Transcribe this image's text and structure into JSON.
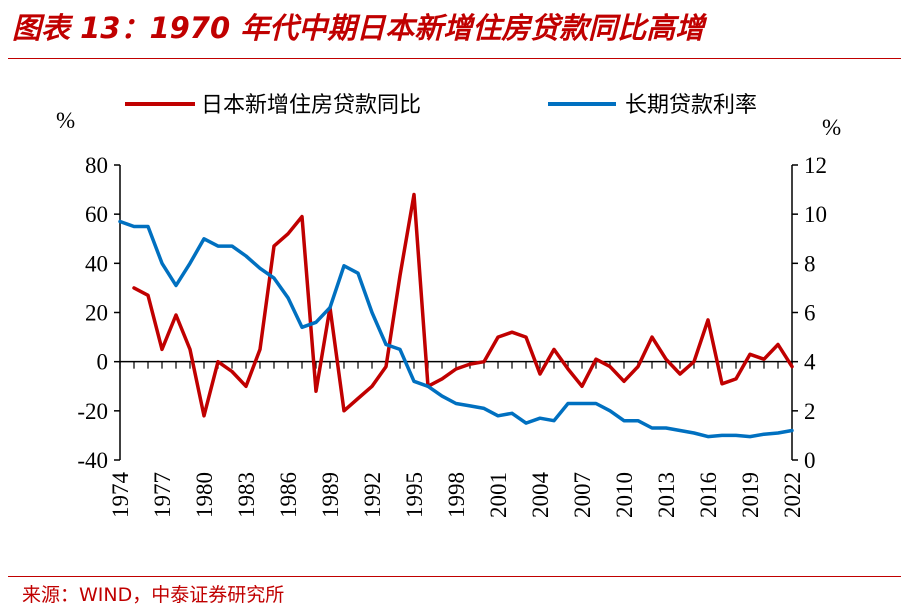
{
  "header": {
    "title": "图表 13：1970 年代中期日本新增住房贷款同比高增"
  },
  "footer": {
    "source": "来源：WIND，中泰证券研究所"
  },
  "colors": {
    "brand_red": "#c00000",
    "series_red": "#c00000",
    "series_blue": "#0070c0"
  },
  "chart_data": {
    "type": "line",
    "left_unit": "%",
    "right_unit": "%",
    "y_left_ticks": [
      "80",
      "60",
      "40",
      "20",
      "0",
      "-20",
      "-40"
    ],
    "y_right_ticks": [
      "12",
      "10",
      "8",
      "6",
      "4",
      "2",
      "0"
    ],
    "ylim_left": [
      -40,
      80
    ],
    "ylim_right": [
      0,
      12
    ],
    "x_tick_labels": [
      "1974",
      "1977",
      "1980",
      "1983",
      "1986",
      "1989",
      "1992",
      "1995",
      "1998",
      "2001",
      "2004",
      "2007",
      "2010",
      "2013",
      "2016",
      "2019",
      "2022"
    ],
    "xlim": [
      1974,
      2022
    ],
    "legend_position": "top",
    "grid": false,
    "series": [
      {
        "name": "日本新增住房贷款同比",
        "axis": "left",
        "color": "#c00000",
        "x": [
          1975,
          1976,
          1977,
          1978,
          1979,
          1980,
          1981,
          1982,
          1983,
          1984,
          1985,
          1986,
          1987,
          1988,
          1989,
          1990,
          1991,
          1992,
          1993,
          1994,
          1995,
          1996,
          1997,
          1998,
          1999,
          2000,
          2001,
          2002,
          2003,
          2004,
          2005,
          2006,
          2007,
          2008,
          2009,
          2010,
          2011,
          2012,
          2013,
          2014,
          2015,
          2016,
          2017,
          2018,
          2019,
          2020,
          2021,
          2022
        ],
        "values": [
          30,
          27,
          5,
          19,
          5,
          -22,
          0,
          -4,
          -10,
          5,
          47,
          52,
          59,
          -12,
          22,
          -20,
          -15,
          -10,
          -2,
          35,
          68,
          -10,
          -7,
          -3,
          -1,
          0,
          10,
          12,
          10,
          -5,
          5,
          -3,
          -10,
          1,
          -2,
          -8,
          -2,
          10,
          1,
          -5,
          0,
          17,
          -9,
          -7,
          3,
          1,
          7,
          -2
        ]
      },
      {
        "name": "长期贷款利率",
        "axis": "right",
        "color": "#0070c0",
        "x": [
          1974,
          1975,
          1976,
          1977,
          1978,
          1979,
          1980,
          1981,
          1982,
          1983,
          1984,
          1985,
          1986,
          1987,
          1988,
          1989,
          1990,
          1991,
          1992,
          1993,
          1994,
          1995,
          1996,
          1997,
          1998,
          1999,
          2000,
          2001,
          2002,
          2003,
          2004,
          2005,
          2006,
          2007,
          2008,
          2009,
          2010,
          2011,
          2012,
          2013,
          2014,
          2015,
          2016,
          2017,
          2018,
          2019,
          2020,
          2021,
          2022
        ],
        "values": [
          9.7,
          9.5,
          9.5,
          8.0,
          7.1,
          8.0,
          9.0,
          8.7,
          8.7,
          8.3,
          7.8,
          7.4,
          6.6,
          5.4,
          5.6,
          6.2,
          7.9,
          7.6,
          6.0,
          4.7,
          4.5,
          3.2,
          3.0,
          2.6,
          2.3,
          2.2,
          2.1,
          1.8,
          1.9,
          1.5,
          1.7,
          1.6,
          2.3,
          2.3,
          2.3,
          2.0,
          1.6,
          1.6,
          1.3,
          1.3,
          1.2,
          1.1,
          0.95,
          1.0,
          1.0,
          0.95,
          1.05,
          1.1,
          1.2
        ]
      }
    ]
  }
}
